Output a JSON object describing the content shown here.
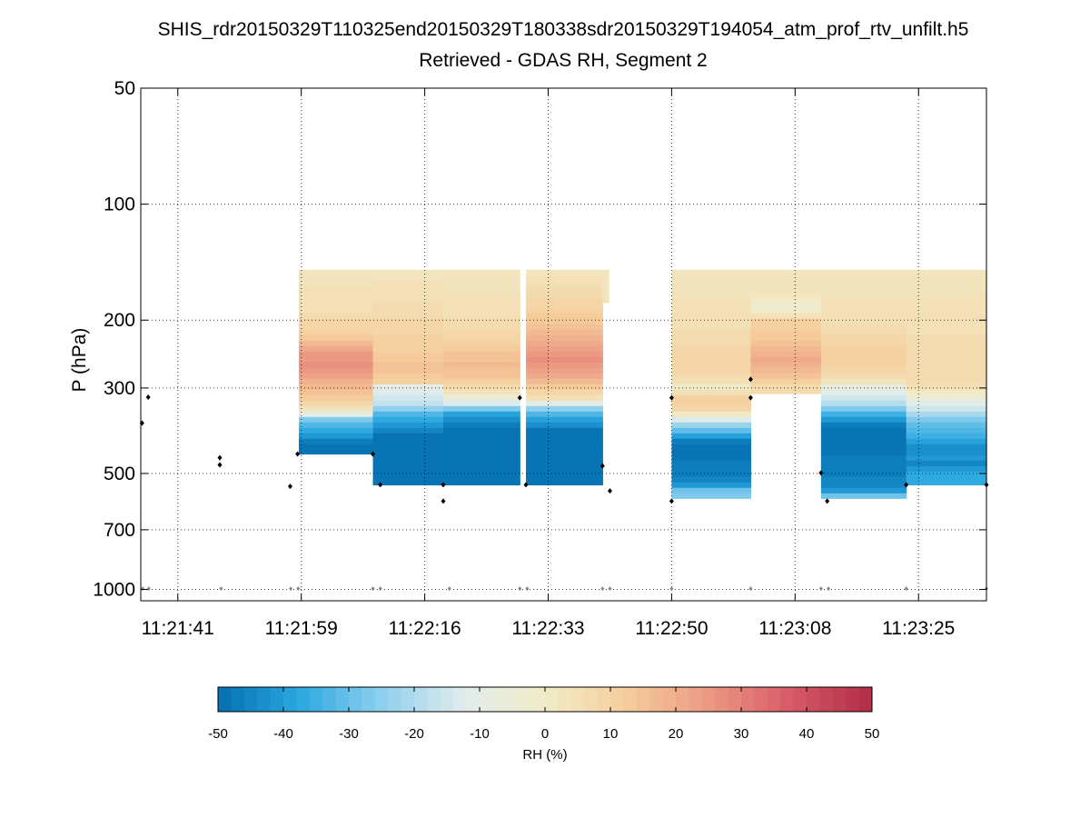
{
  "chart_data": {
    "type": "heatmap",
    "title": "SHIS_rdr20150329T110325end20150329T180338sdr20150329T194054_atm_prof_rtv_unfilt.h5",
    "subtitle": "Retrieved - GDAS RH, Segment 2",
    "xlabel": "",
    "ylabel": "P (hPa)",
    "yscale": "log",
    "y_reversed": true,
    "ylim": [
      50,
      1070
    ],
    "xlim": [
      0,
      137
    ],
    "x_unit": "seconds after 11:21:35",
    "y_ticks": [
      50,
      100,
      200,
      300,
      500,
      700,
      1000
    ],
    "y_tick_labels": [
      "50",
      "100",
      "200",
      "300",
      "500",
      "700",
      "1000"
    ],
    "x_ticks": [
      6,
      26,
      46,
      66,
      86,
      106,
      126
    ],
    "x_tick_labels": [
      "11:21:41",
      "11:21:59",
      "11:22:16",
      "11:22:33",
      "11:22:50",
      "11:23:08",
      "11:23:25"
    ],
    "grid": true,
    "colorbar": {
      "label": "RH (%)",
      "min": -50,
      "max": 50,
      "ticks": [
        -50,
        -40,
        -30,
        -20,
        -10,
        0,
        10,
        20,
        30,
        40,
        50
      ],
      "tick_labels": [
        "-50",
        "-40",
        "-30",
        "-20",
        "-10",
        "0",
        "10",
        "20",
        "30",
        "40",
        "50"
      ],
      "levels": 50,
      "colormap": [
        "#0570b0",
        "#2ba8e0",
        "#8fd0ee",
        "#e0eced",
        "#f1ecc8",
        "#f5cd9c",
        "#ec9983",
        "#d85a67",
        "#b02d48"
      ]
    },
    "columns": [
      {
        "x0": 25.6,
        "x1": 37.6,
        "top": 148,
        "bottom": 445,
        "profile": [
          [
            150,
            3
          ],
          [
            190,
            6
          ],
          [
            220,
            12
          ],
          [
            245,
            24
          ],
          [
            265,
            28
          ],
          [
            285,
            20
          ],
          [
            315,
            13
          ],
          [
            335,
            8
          ],
          [
            350,
            -8
          ],
          [
            365,
            -30
          ],
          [
            390,
            -38
          ],
          [
            420,
            -50
          ]
        ]
      },
      {
        "x0": 37.6,
        "x1": 49.0,
        "top": 148,
        "bottom": 535,
        "profile": [
          [
            150,
            3
          ],
          [
            180,
            6
          ],
          [
            210,
            9
          ],
          [
            240,
            12
          ],
          [
            270,
            15
          ],
          [
            290,
            10
          ],
          [
            300,
            -12
          ],
          [
            330,
            -18
          ],
          [
            350,
            -32
          ],
          [
            375,
            -42
          ],
          [
            400,
            -50
          ]
        ]
      },
      {
        "x0": 49.0,
        "x1": 61.4,
        "top": 148,
        "bottom": 535,
        "profile": [
          [
            150,
            3
          ],
          [
            190,
            5
          ],
          [
            220,
            9
          ],
          [
            245,
            14
          ],
          [
            265,
            17
          ],
          [
            285,
            13
          ],
          [
            310,
            3
          ],
          [
            330,
            -15
          ],
          [
            350,
            -38
          ],
          [
            380,
            -50
          ]
        ]
      },
      {
        "x0": 62.4,
        "x1": 74.8,
        "top": 148,
        "bottom": 535,
        "profile": [
          [
            150,
            3
          ],
          [
            175,
            8
          ],
          [
            205,
            14
          ],
          [
            230,
            22
          ],
          [
            255,
            27
          ],
          [
            275,
            22
          ],
          [
            300,
            12
          ],
          [
            320,
            4
          ],
          [
            340,
            -25
          ],
          [
            360,
            -38
          ],
          [
            390,
            -50
          ]
        ]
      },
      {
        "x0": 74.8,
        "x1": 75.8,
        "top": 148,
        "bottom": 180,
        "profile": [
          [
            150,
            3
          ],
          [
            180,
            3
          ]
        ]
      },
      {
        "x0": 86.0,
        "x1": 98.8,
        "top": 148,
        "bottom": 580,
        "profile": [
          [
            150,
            3
          ],
          [
            200,
            5
          ],
          [
            230,
            8
          ],
          [
            260,
            10
          ],
          [
            285,
            6
          ],
          [
            300,
            -2
          ],
          [
            320,
            13
          ],
          [
            345,
            9
          ],
          [
            360,
            -12
          ],
          [
            385,
            -30
          ],
          [
            420,
            -50
          ],
          [
            530,
            -45
          ],
          [
            555,
            -28
          ],
          [
            580,
            -28
          ]
        ]
      },
      {
        "x0": 98.8,
        "x1": 110.2,
        "top": 148,
        "bottom": 310,
        "profile": [
          [
            150,
            3
          ],
          [
            175,
            3
          ],
          [
            185,
            -4
          ],
          [
            200,
            10
          ],
          [
            225,
            14
          ],
          [
            255,
            21
          ],
          [
            280,
            15
          ],
          [
            300,
            6
          ],
          [
            310,
            6
          ]
        ]
      },
      {
        "x0": 110.2,
        "x1": 124.0,
        "top": 148,
        "bottom": 580,
        "profile": [
          [
            150,
            3
          ],
          [
            195,
            5
          ],
          [
            225,
            9
          ],
          [
            255,
            12
          ],
          [
            275,
            8
          ],
          [
            290,
            2
          ],
          [
            300,
            -8
          ],
          [
            330,
            -20
          ],
          [
            355,
            -38
          ],
          [
            380,
            -50
          ],
          [
            550,
            -45
          ],
          [
            565,
            -30
          ],
          [
            580,
            -30
          ]
        ]
      },
      {
        "x0": 124.0,
        "x1": 137.0,
        "top": 148,
        "bottom": 535,
        "profile": [
          [
            150,
            3
          ],
          [
            200,
            5
          ],
          [
            240,
            7
          ],
          [
            275,
            8
          ],
          [
            300,
            5
          ],
          [
            315,
            -4
          ],
          [
            330,
            -12
          ],
          [
            350,
            -20
          ],
          [
            370,
            -30
          ],
          [
            400,
            -35
          ],
          [
            430,
            -45
          ],
          [
            460,
            -40
          ],
          [
            475,
            -48
          ],
          [
            490,
            -38
          ],
          [
            535,
            -38
          ]
        ]
      }
    ],
    "markers_black": [
      [
        0.2,
        370
      ],
      [
        1.2,
        317
      ],
      [
        12.8,
        455
      ],
      [
        12.8,
        475
      ],
      [
        24.2,
        540
      ],
      [
        25.4,
        445
      ],
      [
        37.6,
        445
      ],
      [
        38.8,
        535
      ],
      [
        49.0,
        535
      ],
      [
        49.0,
        590
      ],
      [
        61.4,
        318
      ],
      [
        62.4,
        535
      ],
      [
        74.8,
        478
      ],
      [
        76.0,
        555
      ],
      [
        86.0,
        318
      ],
      [
        86.0,
        590
      ],
      [
        98.8,
        285
      ],
      [
        98.8,
        318
      ],
      [
        110.2,
        498
      ],
      [
        111.2,
        590
      ],
      [
        124.0,
        535
      ],
      [
        137.0,
        535
      ]
    ],
    "markers_gray": [
      [
        0.3,
        995
      ],
      [
        1.3,
        995
      ],
      [
        13.0,
        995
      ],
      [
        24.3,
        995
      ],
      [
        25.5,
        995
      ],
      [
        37.6,
        995
      ],
      [
        38.8,
        995
      ],
      [
        50.0,
        995
      ],
      [
        61.4,
        995
      ],
      [
        62.6,
        995
      ],
      [
        74.8,
        995
      ],
      [
        76.0,
        995
      ],
      [
        86.0,
        995
      ],
      [
        98.8,
        995
      ],
      [
        110.2,
        995
      ],
      [
        111.4,
        995
      ],
      [
        124.0,
        995
      ],
      [
        137.0,
        995
      ]
    ]
  }
}
